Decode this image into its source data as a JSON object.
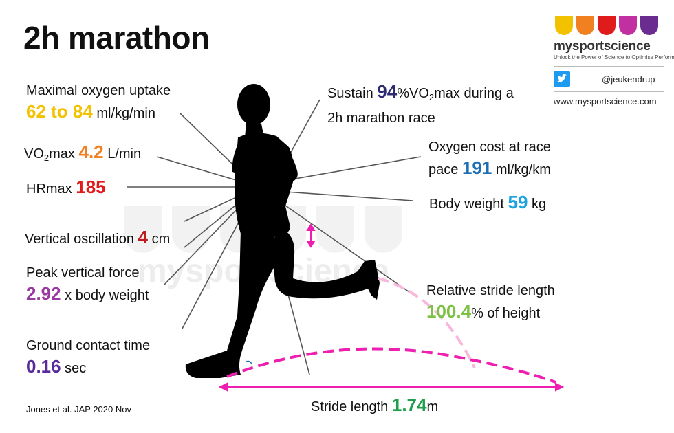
{
  "title": "2h marathon",
  "colors": {
    "yellow": "#f2c200",
    "orange": "#f08020",
    "red": "#e01b1b",
    "navy": "#2e2a72",
    "blue": "#1f6db3",
    "lightblue": "#1aa3e0",
    "crimson": "#c0191f",
    "purple": "#9a3aa0",
    "violet": "#5a2a9a",
    "lime": "#7cc242",
    "green": "#1e9e4a",
    "magenta": "#ee1fb0",
    "lines": "#555555"
  },
  "brand": {
    "name": "mysportscience",
    "tagline": "Unlock the Power of Science to Optimise Performance",
    "handle": "@jeukendrup",
    "website": "www.mysportscience.com",
    "drop_colors": [
      "#f2c200",
      "#f08020",
      "#e01b1b",
      "#c22fa0",
      "#6a2d8f"
    ]
  },
  "watermark": "mysportscience",
  "metrics": {
    "vo2_uptake": {
      "label": "Maximal oxygen uptake",
      "value": "62 to 84",
      "unit": "ml/kg/min"
    },
    "vo2max": {
      "pre": "VO",
      "sub": "2",
      "post": "max",
      "value": "4.2",
      "unit": "L/min"
    },
    "hrmax": {
      "label": "HRmax",
      "value": "185"
    },
    "vertical_oscillation": {
      "label": "Vertical oscillation",
      "value": "4",
      "unit": "cm"
    },
    "peak_force": {
      "label": "Peak vertical force",
      "value": "2.92",
      "unit": "x body weight"
    },
    "contact_time": {
      "label": "Ground contact time",
      "value": "0.16",
      "unit": "sec"
    },
    "sustain": {
      "pre": "Sustain",
      "value": "94",
      "mid": "%VO",
      "sub": "2",
      "post": "max during a",
      "line2": "2h marathon race"
    },
    "oxygen_cost": {
      "line1": "Oxygen cost at race",
      "pre": "pace",
      "value": "191",
      "unit": "ml/kg/km"
    },
    "body_weight": {
      "label": "Body weight",
      "value": "59",
      "unit": "kg"
    },
    "relative_stride": {
      "label": "Relative stride length",
      "value": "100.4",
      "unit": "% of height"
    },
    "stride_length": {
      "label": "Stride length",
      "value": "1.74",
      "unit": "m"
    }
  },
  "citation": "Jones et al. JAP 2020 Nov"
}
